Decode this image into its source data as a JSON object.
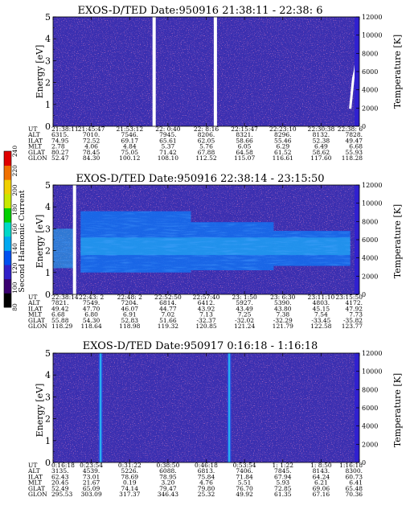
{
  "colorbar": {
    "label": "Second Harmonic Current",
    "ticks": [
      "80",
      "100",
      "120",
      "140",
      "160",
      "180",
      "200",
      "220",
      "240"
    ],
    "colors": [
      "#000000",
      "#3a0070",
      "#3020c8",
      "#0050f0",
      "#00a8f0",
      "#00d8c8",
      "#00d000",
      "#c8e800",
      "#f0d000",
      "#f07000",
      "#e00000"
    ]
  },
  "colors": {
    "background_field": "#3b2fb0",
    "speckle": "#7a2a80",
    "band_light": "#28b4f0",
    "band_mid": "#1470f0",
    "band_deep": "#2848e0",
    "temperature_trace": "#ffffff"
  },
  "chart_data": [
    {
      "type": "heatmap",
      "title": "EXOS-D/TED   Date:950916  21:38:11 - 22:38: 6",
      "ylabel": "Energy [eV]",
      "y2label": "Temperature [K]",
      "ylim": [
        0,
        5
      ],
      "y2lim": [
        0,
        12000
      ],
      "yticks": [
        "0",
        "1",
        "2",
        "3",
        "4",
        "5"
      ],
      "y2ticks": [
        "0",
        "2000",
        "4000",
        "6000",
        "8000",
        "10000",
        "12000"
      ],
      "gaps": [
        0.33,
        0.53
      ],
      "bands": [],
      "temperature_trace": [
        [
          0.97,
          0.8
        ],
        [
          0.975,
          1.5
        ],
        [
          0.98,
          2.2
        ],
        [
          0.985,
          2.5
        ],
        [
          0.99,
          3.0
        ]
      ],
      "table": {
        "labels": [
          "UT",
          "ALT",
          "ILAT",
          "MLT",
          "GLAT",
          "GLON"
        ],
        "columns": [
          [
            "21:38:11",
            "6315.",
            "74.95",
            "2.78",
            "80.27",
            "52.47"
          ],
          [
            "21:45:47",
            "7010.",
            "72.52",
            "4.06",
            "78.45",
            "84.30"
          ],
          [
            "21:53:12",
            "7546.",
            "69.17",
            "4.84",
            "75.05",
            "100.12"
          ],
          [
            "22: 0:40",
            "7945.",
            "65.61",
            "5.37",
            "71.42",
            "108.10"
          ],
          [
            "22: 8:16",
            "8206.",
            "62.05",
            "5.76",
            "67.88",
            "112.52"
          ],
          [
            "22:15:47",
            "8321.",
            "58.66",
            "6.05",
            "64.58",
            "115.07"
          ],
          [
            "22:23:10",
            "8296.",
            "55.46",
            "6.29",
            "61.52",
            "116.61"
          ],
          [
            "22:30:38",
            "8132.",
            "52.38",
            "6.49",
            "58.62",
            "117.60"
          ],
          [
            "22:38: 6",
            "7828.",
            "49.47",
            "6.68",
            "55.93",
            "118.28"
          ]
        ]
      }
    },
    {
      "type": "heatmap",
      "title": "EXOS-D/TED   Date:950916  22:38:14 - 23:15:50",
      "ylabel": "Energy [eV]",
      "y2label": "Temperature [K]",
      "ylim": [
        0,
        5
      ],
      "y2lim": [
        0,
        12000
      ],
      "yticks": [
        "0",
        "1",
        "2",
        "3",
        "4",
        "5"
      ],
      "y2ticks": [
        "0",
        "2000",
        "4000",
        "6000",
        "8000",
        "10000",
        "12000"
      ],
      "gaps": [
        0.07
      ],
      "bands": [
        {
          "x0": 0.0,
          "x1": 0.07,
          "e0": 1.2,
          "e1": 3.0,
          "level": "light"
        },
        {
          "x0": 0.09,
          "x1": 0.45,
          "e0": 1.0,
          "e1": 3.8,
          "level": "mid"
        },
        {
          "x0": 0.45,
          "x1": 0.72,
          "e0": 1.1,
          "e1": 3.3,
          "level": "mid"
        },
        {
          "x0": 0.72,
          "x1": 0.97,
          "e0": 1.3,
          "e1": 2.9,
          "level": "mid"
        },
        {
          "x0": 0.09,
          "x1": 0.97,
          "e0": 1.8,
          "e1": 2.6,
          "level": "light"
        }
      ],
      "temperature_trace": [],
      "table": {
        "labels": [
          "UT",
          "ALT",
          "ILAT",
          "MLT",
          "GLAT",
          "GLON"
        ],
        "columns": [
          [
            "22:38:14",
            "7821.",
            "49.42",
            "6.68",
            "55.88",
            "118.29"
          ],
          [
            "22:43: 2",
            "7549.",
            "47.70",
            "6.80",
            "54.30",
            "118.64"
          ],
          [
            "22:48: 2",
            "7204.",
            "46.07",
            "6.91",
            "52.83",
            "118.98"
          ],
          [
            "22:52:50",
            "6814.",
            "44.77",
            "7.02",
            "51.66",
            "119.32"
          ],
          [
            "22:57:40",
            "6412.",
            "43.92",
            "7.13",
            "-32.37",
            "120.85"
          ],
          [
            "23: 1:50",
            "5927.",
            "43.49",
            "7.25",
            "-32.02",
            "121.24"
          ],
          [
            "23: 6:30",
            "5390.",
            "43.80",
            "7.38",
            "-32.29",
            "121.79"
          ],
          [
            "23:11:10",
            "4803.",
            "45.15",
            "7.54",
            "-33.45",
            "122.58"
          ],
          [
            "23:15:50",
            "4172.",
            "47.92",
            "7.73",
            "-35.82",
            "123.77"
          ]
        ]
      }
    },
    {
      "type": "heatmap",
      "title": "EXOS-D/TED   Date:950917  0:16:18 - 1:16:18",
      "ylabel": "Energy [eV]",
      "y2label": "Temperature [K]",
      "ylim": [
        0,
        5
      ],
      "y2lim": [
        0,
        12000
      ],
      "yticks": [
        "0",
        "1",
        "2",
        "3",
        "4",
        "5"
      ],
      "y2ticks": [
        "0",
        "2000",
        "4000",
        "6000",
        "8000",
        "10000",
        "12000"
      ],
      "gaps": [],
      "streaks": [
        0.155,
        0.575
      ],
      "bands": [],
      "temperature_trace": [],
      "table": {
        "labels": [
          "UT",
          "ALT",
          "ILAT",
          "MLT",
          "GLAT",
          "GLON"
        ],
        "columns": [
          [
            "0:16:18",
            "3135.",
            "62.43",
            "20.45",
            "52.49",
            "295.53"
          ],
          [
            "0:23:54",
            "4539.",
            "73.01",
            "21.67",
            "65.09",
            "303.09"
          ],
          [
            "0:31:22",
            "5226.",
            "78.69",
            "0.19",
            "74.14",
            "317.37"
          ],
          [
            "0:38:50",
            "6088.",
            "78.95",
            "3.20",
            "79.47",
            "346.43"
          ],
          [
            "0:46:18",
            "6813.",
            "75.84",
            "4.76",
            "79.80",
            "25.32"
          ],
          [
            "0:53:54",
            "7406.",
            "71.84",
            "5.51",
            "76.70",
            "49.92"
          ],
          [
            "1: 1:22",
            "7845.",
            "67.94",
            "5.93",
            "72.85",
            "61.35"
          ],
          [
            "1: 8:50",
            "8143.",
            "64.24",
            "6.21",
            "69.06",
            "67.16"
          ],
          [
            "1:16:18",
            "8300.",
            "60.73",
            "6.41",
            "65.48",
            "70.36"
          ]
        ]
      }
    }
  ]
}
